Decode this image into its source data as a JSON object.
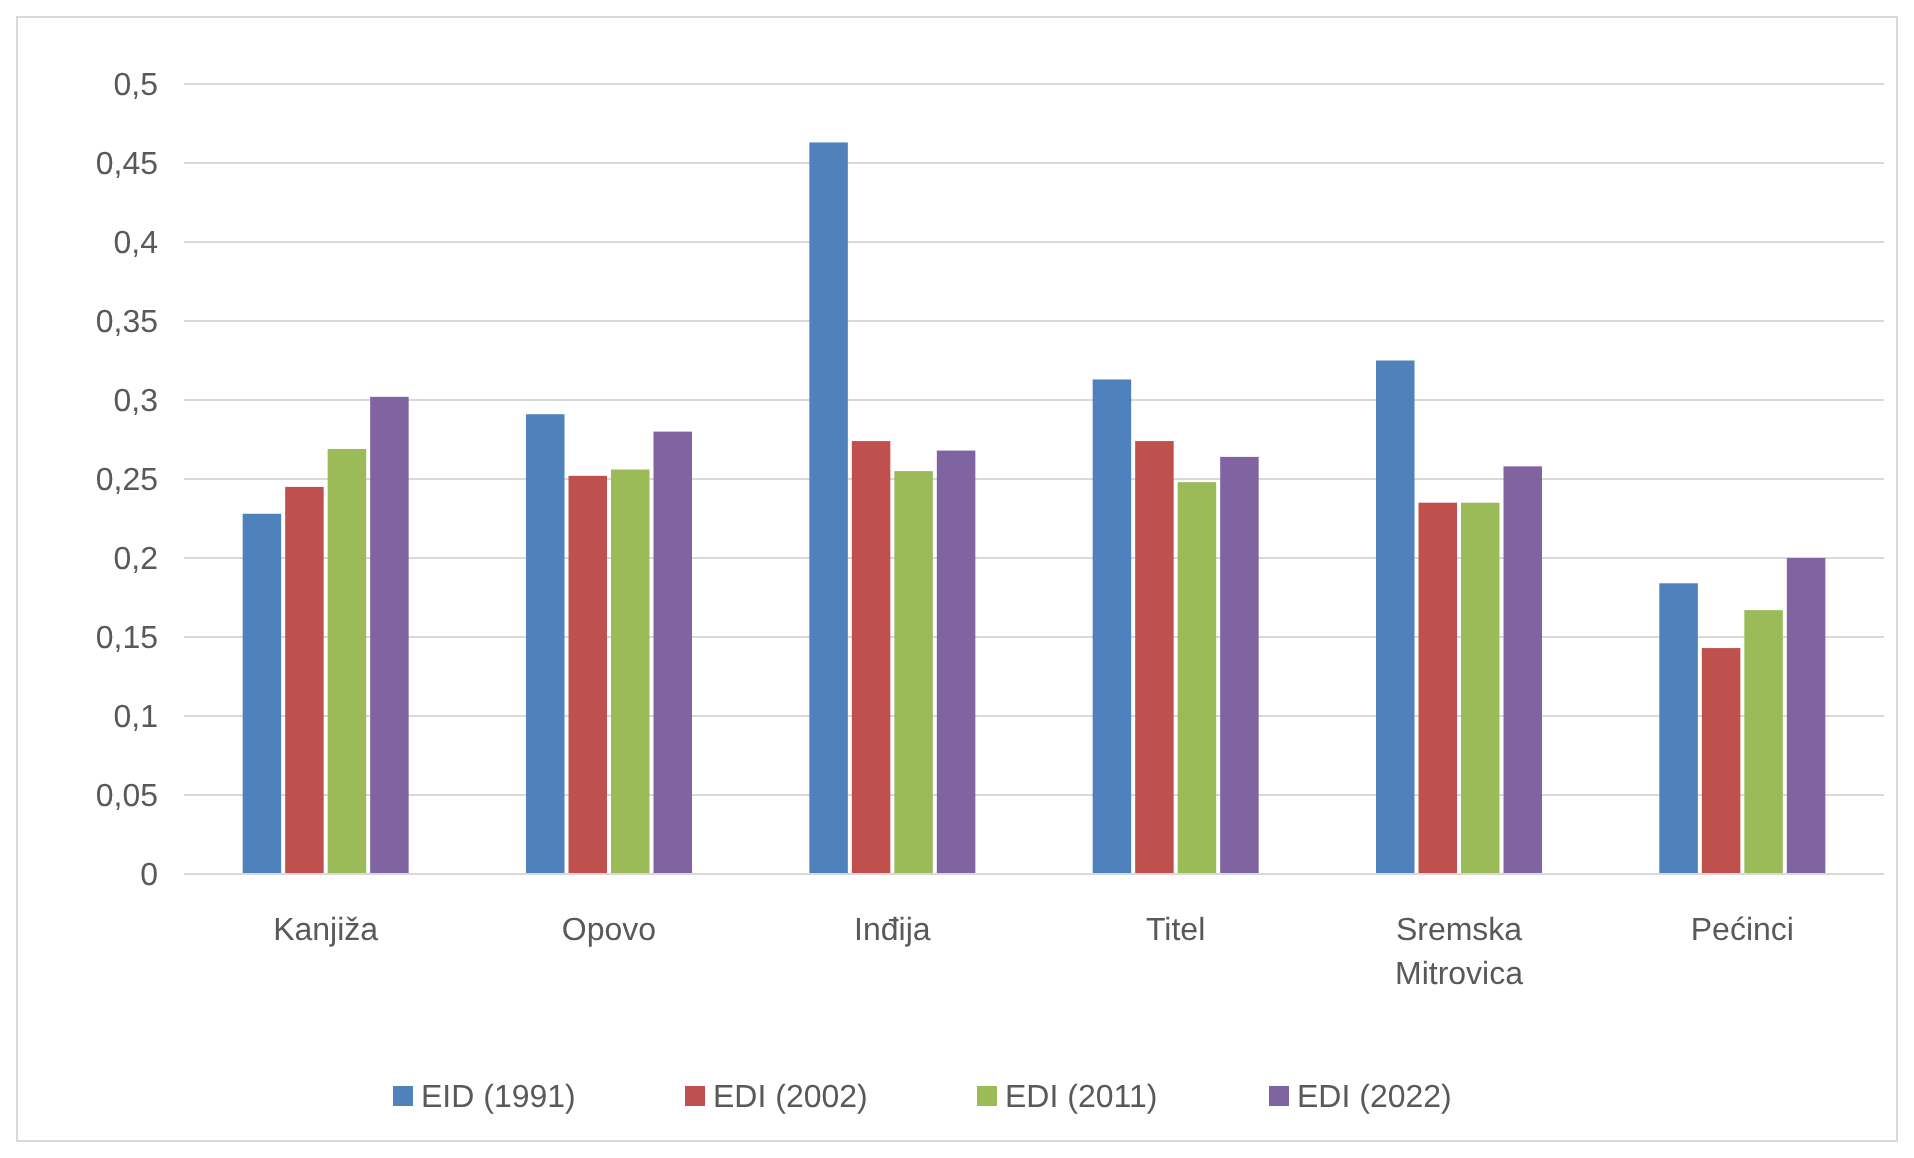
{
  "chart_data": {
    "type": "bar",
    "categories": [
      "Kanjiža",
      "Opovo",
      "Inđija",
      "Titel",
      "Sremska Mitrovica",
      "Pećinci"
    ],
    "series": [
      {
        "name": "EID (1991)",
        "color": "#4f81bd",
        "values": [
          0.228,
          0.291,
          0.463,
          0.313,
          0.325,
          0.184
        ]
      },
      {
        "name": "EDI (2002)",
        "color": "#c0504d",
        "values": [
          0.245,
          0.252,
          0.274,
          0.274,
          0.235,
          0.143
        ]
      },
      {
        "name": "EDI (2011)",
        "color": "#9bbb59",
        "values": [
          0.269,
          0.256,
          0.255,
          0.248,
          0.235,
          0.167
        ]
      },
      {
        "name": "EDI (2022)",
        "color": "#8064a2",
        "values": [
          0.302,
          0.28,
          0.268,
          0.264,
          0.258,
          0.2
        ]
      }
    ],
    "ylim": [
      0,
      0.5
    ],
    "yticks": [
      {
        "value": 0,
        "label": "0"
      },
      {
        "value": 0.05,
        "label": "0,05"
      },
      {
        "value": 0.1,
        "label": "0,1"
      },
      {
        "value": 0.15,
        "label": "0,15"
      },
      {
        "value": 0.2,
        "label": "0,2"
      },
      {
        "value": 0.25,
        "label": "0,25"
      },
      {
        "value": 0.3,
        "label": "0,3"
      },
      {
        "value": 0.35,
        "label": "0,35"
      },
      {
        "value": 0.4,
        "label": "0,4"
      },
      {
        "value": 0.45,
        "label": "0,45"
      },
      {
        "value": 0.5,
        "label": "0,5"
      }
    ],
    "grid": "y",
    "legend": "bottom"
  }
}
